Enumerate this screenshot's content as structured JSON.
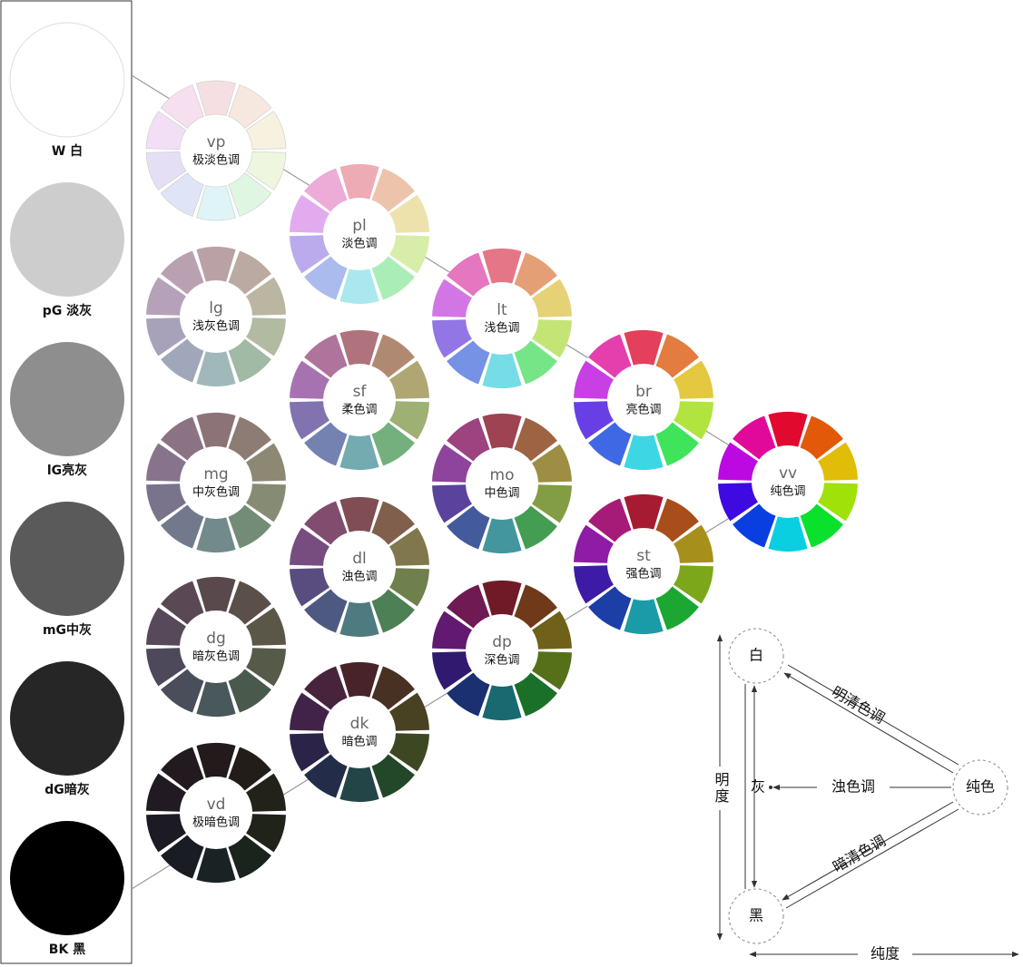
{
  "gray_scale": [
    {
      "label": "W 白"
    },
    {
      "label": "pG 淡灰"
    },
    {
      "label": "lG亮灰"
    },
    {
      "label": "mG中灰"
    },
    {
      "label": "dG暗灰"
    },
    {
      "label": "BK 黑"
    }
  ],
  "tones": [
    {
      "code": "vp",
      "name": "极淡色调"
    },
    {
      "code": "pl",
      "name": "淡色调"
    },
    {
      "code": "lt",
      "name": "浅色调"
    },
    {
      "code": "br",
      "name": "亮色调"
    },
    {
      "code": "vv",
      "name": "纯色调"
    },
    {
      "code": "lg",
      "name": "浅灰色调"
    },
    {
      "code": "sf",
      "name": "柔色调"
    },
    {
      "code": "mo",
      "name": "中色调"
    },
    {
      "code": "st",
      "name": "强色调"
    },
    {
      "code": "mg",
      "name": "中灰色调"
    },
    {
      "code": "dl",
      "name": "浊色调"
    },
    {
      "code": "dp",
      "name": "深色调"
    },
    {
      "code": "dg",
      "name": "暗灰色调"
    },
    {
      "code": "dk",
      "name": "暗色调"
    },
    {
      "code": "vd",
      "name": "极暗色调"
    }
  ],
  "diagram": {
    "white": "白",
    "pure": "纯色",
    "black": "黑",
    "gray": "灰",
    "light_clear": "明清色调",
    "dull": "浊色调",
    "dark_clear": "暗清色调",
    "lightness": "明度",
    "saturation": "纯度"
  }
}
